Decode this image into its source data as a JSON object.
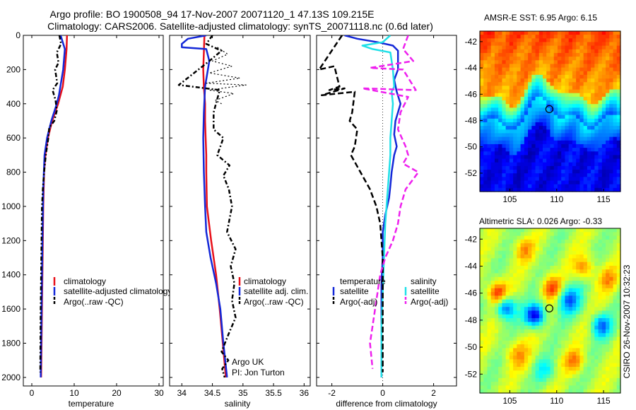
{
  "title": {
    "line1": "Argo profile: BO 1900508_94 17-Nov-2007 20071120_1 47.13S 109.215E",
    "line2": "Climatology: CARS2006. Satellite-adjusted climatology: synTS_20071118.nc (0.6d later)"
  },
  "side_text": "CSIRO 26-Nov-2007 10:32:23",
  "colors": {
    "red": "#e8101a",
    "blue": "#1428d8",
    "cyan": "#20e0e8",
    "magenta": "#ee20ee",
    "black": "#000000"
  },
  "chart_data": [
    {
      "id": "temperature",
      "type": "line",
      "xlabel": "temperature",
      "xlim": [
        -2,
        31
      ],
      "ylim": [
        2050,
        0
      ],
      "xticks": [
        0,
        10,
        20,
        30
      ],
      "yticks": [
        0,
        200,
        400,
        600,
        800,
        1000,
        1200,
        1400,
        1600,
        1800,
        2000
      ],
      "legend": [
        "climatology",
        "satellite-adjusted climatology",
        "Argo(..raw -QC)"
      ],
      "series": [
        {
          "name": "climatology",
          "color": "red",
          "dash": "",
          "x": [
            8.3,
            8.2,
            7.8,
            7.3,
            6.2,
            4.8,
            3.8,
            3.2,
            2.9,
            2.7,
            2.6,
            2.5,
            2.4,
            2.3,
            2.2
          ],
          "y": [
            0,
            80,
            200,
            300,
            400,
            500,
            600,
            700,
            800,
            1000,
            1200,
            1400,
            1600,
            1800,
            2000
          ]
        },
        {
          "name": "satellite-adjusted climatology",
          "color": "blue",
          "dash": "",
          "x": [
            6.8,
            7.3,
            7.8,
            7.4,
            6.4,
            5.9,
            4.6,
            3.6,
            3.0,
            2.7,
            2.5,
            2.4,
            2.3,
            2.2,
            2.1
          ],
          "y": [
            0,
            40,
            80,
            200,
            350,
            400,
            500,
            600,
            700,
            900,
            1200,
            1400,
            1600,
            1800,
            2000
          ]
        },
        {
          "name": "Argo(..raw -QC)",
          "color": "black",
          "dash": "6,3,2,3",
          "x": [
            6.5,
            6.9,
            5.9,
            6.3,
            5.5,
            6.0,
            4.9,
            5.6,
            5.9,
            5.3,
            4.1,
            3.9,
            3.3,
            2.9,
            2.6,
            2.4,
            2.3,
            2.2,
            2.1,
            2.0
          ],
          "y": [
            0,
            50,
            100,
            160,
            200,
            280,
            320,
            380,
            440,
            500,
            540,
            600,
            700,
            800,
            900,
            1000,
            1200,
            1400,
            1600,
            1970
          ]
        }
      ]
    },
    {
      "id": "salinity",
      "type": "line",
      "xlabel": "salinity",
      "xlim": [
        33.8,
        36.1
      ],
      "ylim": [
        2050,
        0
      ],
      "xticks": [
        34,
        34.5,
        35,
        35.5,
        36
      ],
      "xticklabels": [
        "34",
        "34.5",
        "35",
        "35.5",
        "36"
      ],
      "legend": [
        "climatology",
        "satellite adj. clim.",
        "Argo(..raw -QC)"
      ],
      "annotation": [
        "Argo UK",
        "PI: Jon Turton"
      ],
      "series": [
        {
          "name": "climatology",
          "color": "red",
          "dash": "",
          "x": [
            34.37,
            34.36,
            34.35,
            34.36,
            34.38,
            34.38,
            34.39,
            34.4,
            34.4,
            34.41,
            34.48,
            34.56,
            34.62,
            34.67,
            34.72
          ],
          "y": [
            0,
            100,
            200,
            300,
            400,
            500,
            600,
            700,
            800,
            1000,
            1200,
            1400,
            1600,
            1800,
            2000
          ]
        },
        {
          "name": "satellite adj. clim.",
          "color": "blue",
          "dash": "",
          "x": [
            34.4,
            34.1,
            34.0,
            34.0,
            34.4,
            34.45,
            34.38,
            34.36,
            34.35,
            34.36,
            34.38,
            34.4,
            34.47,
            34.56,
            34.63,
            34.68,
            34.74
          ],
          "y": [
            0,
            20,
            50,
            70,
            80,
            150,
            300,
            450,
            600,
            800,
            1000,
            1150,
            1300,
            1450,
            1600,
            1800,
            2000
          ]
        },
        {
          "name": "Argo(..raw -QC)",
          "color": "black",
          "dash": "6,3,2,3",
          "x": [
            34.5,
            34.4,
            34.65,
            34.45,
            33.95,
            34.62,
            34.52,
            34.52,
            34.68,
            34.58,
            34.78,
            34.68,
            34.77,
            34.82,
            34.74,
            34.88,
            34.8,
            34.86,
            34.82,
            34.88,
            34.76,
            34.65,
            34.76,
            34.66,
            34.7
          ],
          "y": [
            0,
            50,
            90,
            150,
            290,
            320,
            450,
            550,
            600,
            700,
            760,
            820,
            900,
            1000,
            1150,
            1250,
            1350,
            1450,
            1550,
            1650,
            1750,
            1850,
            1900,
            1950,
            2000
          ]
        },
        {
          "name": "Argo raw (dotted)",
          "color": "black",
          "dash": "2,3",
          "x": [
            34.58,
            34.75,
            34.5,
            34.82,
            34.45,
            34.95,
            34.4,
            35.05,
            34.45,
            34.85,
            34.55,
            34.65
          ],
          "y": [
            70,
            110,
            150,
            180,
            220,
            250,
            280,
            290,
            320,
            340,
            380,
            400
          ]
        }
      ]
    },
    {
      "id": "difference",
      "type": "line",
      "xlabel": "difference from climatology",
      "xlim": [
        -2.6,
        2.9
      ],
      "ylim": [
        2050,
        0
      ],
      "xticks": [
        -2,
        0,
        2
      ],
      "legend": {
        "temperature_header": "temperature",
        "salinity_header": "salinity",
        "temperature": [
          "satellite",
          "Argo(-adj)"
        ],
        "salinity": [
          "satellite",
          "Argo(-adj)"
        ]
      },
      "series": [
        {
          "name": "temperature satellite",
          "color": "blue",
          "dash": "",
          "x": [
            -1.5,
            -1.0,
            -0.2,
            0.4,
            0.6,
            0.6,
            0.45,
            0.55,
            0.7,
            0.5,
            0.45,
            0.55,
            0.45,
            0.35,
            0.3,
            0.25,
            0.1,
            0.0,
            0.0,
            -0.05,
            -0.05,
            -0.05,
            -0.05
          ],
          "y": [
            0,
            20,
            40,
            60,
            90,
            200,
            260,
            330,
            400,
            500,
            580,
            650,
            700,
            800,
            880,
            950,
            1050,
            1150,
            1300,
            1450,
            1600,
            1800,
            2000
          ]
        },
        {
          "name": "salinity satellite",
          "color": "cyan",
          "dash": "",
          "x": [
            0.3,
            0.0,
            -0.8,
            -0.4,
            0.3,
            0.4,
            0.45,
            0.35,
            0.4,
            0.35,
            0.3,
            0.3,
            0.25,
            0.2,
            0.15,
            0.1,
            0.05,
            0.0,
            -0.05,
            -0.05,
            -0.05
          ],
          "y": [
            0,
            40,
            60,
            80,
            100,
            200,
            300,
            330,
            400,
            500,
            600,
            700,
            800,
            900,
            1000,
            1100,
            1300,
            1500,
            1700,
            1900,
            2000
          ]
        },
        {
          "name": "temperature Argo(-adj)",
          "color": "black",
          "dash": "8,4",
          "x": [
            -1.6,
            -2.5,
            -1.9,
            -1.7,
            -2.1,
            -1.5,
            -2.4,
            -1.1,
            -1.2,
            -1.3,
            -1.0,
            -1.1,
            -1.25,
            -0.5,
            -0.25,
            -0.1,
            0.0,
            0.0,
            0.0
          ],
          "y": [
            0,
            200,
            180,
            300,
            320,
            310,
            350,
            330,
            450,
            500,
            550,
            650,
            700,
            900,
            1000,
            1100,
            1300,
            1600,
            1970
          ]
        },
        {
          "name": "salinity Argo(-adj)",
          "color": "magenta",
          "dash": "8,4",
          "x": [
            1.0,
            0.8,
            1.2,
            -0.5,
            0.8,
            1.3,
            -0.8,
            1.0,
            0.7,
            0.6,
            0.9,
            1.0,
            0.8,
            1.4,
            0.9,
            0.7,
            0.6,
            0.4,
            0.1,
            -0.1,
            -0.2,
            -0.3,
            -0.4,
            -0.5,
            -0.4
          ],
          "y": [
            0,
            80,
            150,
            190,
            200,
            320,
            310,
            360,
            450,
            550,
            650,
            700,
            750,
            800,
            900,
            1000,
            1100,
            1200,
            1300,
            1400,
            1500,
            1600,
            1700,
            1800,
            1950
          ]
        }
      ]
    }
  ],
  "maps": [
    {
      "id": "sst-map",
      "type": "heatmap",
      "title": "AMSR-E SST: 6.95 Argo: 6.15",
      "xticks": [
        105,
        110,
        115
      ],
      "yticks": [
        -42,
        -44,
        -46,
        -48,
        -50,
        -52
      ],
      "xlim": [
        101.8,
        116.8
      ],
      "ylim": [
        -53.4,
        -41.2
      ],
      "marker": {
        "lon": 109.215,
        "lat": -47.13
      }
    },
    {
      "id": "sla-map",
      "type": "heatmap",
      "title": "Altimetric SLA: 0.026 Argo: -0.33",
      "xticks": [
        105,
        110,
        115
      ],
      "yticks": [
        -42,
        -44,
        -46,
        -48,
        -50,
        -52
      ],
      "xlim": [
        101.8,
        116.8
      ],
      "ylim": [
        -53.4,
        -41.2
      ],
      "marker": {
        "lon": 109.215,
        "lat": -47.13
      }
    }
  ]
}
